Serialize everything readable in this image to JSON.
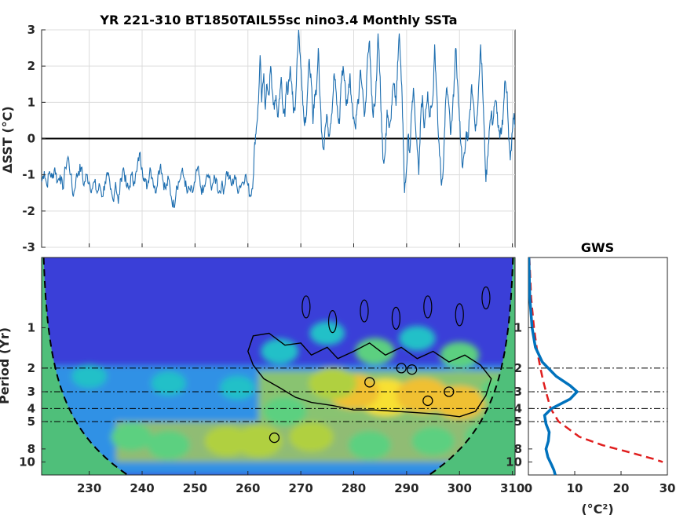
{
  "chart_data": [
    {
      "type": "line",
      "title": "YR 221-310 BT1850TAIL55sc nino3.4 Monthly SSTa",
      "xlabel": "",
      "ylabel": "ΔSST (°C)",
      "xlim": [
        221,
        310.5
      ],
      "ylim": [
        -3,
        3
      ],
      "xticks": [
        230,
        240,
        250,
        260,
        270,
        280,
        290,
        300,
        310
      ],
      "yticks": [
        -3,
        -2,
        -1,
        0,
        1,
        2,
        3
      ],
      "grid": true,
      "reference_line": 0,
      "line_color": "#1f6fb0",
      "series_anchor_points": [
        [
          221.0,
          -1.2
        ],
        [
          221.5,
          -0.9
        ],
        [
          222.0,
          -1.3
        ],
        [
          222.5,
          -0.9
        ],
        [
          223.0,
          -1.1
        ],
        [
          223.5,
          -0.8
        ],
        [
          224.0,
          -1.2
        ],
        [
          224.5,
          -1.0
        ],
        [
          225.0,
          -1.4
        ],
        [
          225.5,
          -0.8
        ],
        [
          226.0,
          -0.5
        ],
        [
          226.5,
          -1.0
        ],
        [
          227.0,
          -1.6
        ],
        [
          227.5,
          -1.1
        ],
        [
          228.0,
          -0.9
        ],
        [
          228.5,
          -0.8
        ],
        [
          229.0,
          -1.3
        ],
        [
          229.5,
          -1.0
        ],
        [
          230.0,
          -1.2
        ],
        [
          230.5,
          -1.4
        ],
        [
          231.0,
          -1.2
        ],
        [
          231.5,
          -1.5
        ],
        [
          232.0,
          -1.3
        ],
        [
          232.5,
          -1.6
        ],
        [
          233.0,
          -1.2
        ],
        [
          233.5,
          -1.0
        ],
        [
          234.0,
          -1.4
        ],
        [
          234.5,
          -1.7
        ],
        [
          235.0,
          -1.2
        ],
        [
          235.5,
          -1.8
        ],
        [
          236.0,
          -1.1
        ],
        [
          236.5,
          -0.8
        ],
        [
          237.0,
          -1.3
        ],
        [
          237.5,
          -1.4
        ],
        [
          238.0,
          -1.0
        ],
        [
          238.5,
          -1.2
        ],
        [
          239.0,
          -0.9
        ],
        [
          239.5,
          -0.4
        ],
        [
          240.0,
          -0.8
        ],
        [
          240.5,
          -1.2
        ],
        [
          241.0,
          -1.3
        ],
        [
          241.5,
          -0.8
        ],
        [
          242.0,
          -1.1
        ],
        [
          242.5,
          -1.5
        ],
        [
          243.0,
          -1.0
        ],
        [
          243.5,
          -0.7
        ],
        [
          244.0,
          -1.2
        ],
        [
          244.5,
          -1.4
        ],
        [
          245.0,
          -1.1
        ],
        [
          245.5,
          -1.6
        ],
        [
          246.0,
          -1.9
        ],
        [
          246.5,
          -1.3
        ],
        [
          247.0,
          -1.2
        ],
        [
          247.5,
          -0.9
        ],
        [
          248.0,
          -1.1
        ],
        [
          248.5,
          -1.5
        ],
        [
          249.0,
          -1.4
        ],
        [
          249.5,
          -1.5
        ],
        [
          250.0,
          -1.2
        ],
        [
          250.5,
          -0.8
        ],
        [
          251.0,
          -1.3
        ],
        [
          251.5,
          -1.5
        ],
        [
          252.0,
          -1.2
        ],
        [
          252.5,
          -1.0
        ],
        [
          253.0,
          -1.3
        ],
        [
          253.5,
          -1.2
        ],
        [
          254.0,
          -1.1
        ],
        [
          254.5,
          -1.5
        ],
        [
          255.0,
          -1.3
        ],
        [
          255.5,
          -1.4
        ],
        [
          256.0,
          -0.9
        ],
        [
          256.5,
          -1.1
        ],
        [
          257.0,
          -1.3
        ],
        [
          257.5,
          -1.0
        ],
        [
          258.0,
          -1.4
        ],
        [
          258.5,
          -1.3
        ],
        [
          259.0,
          -1.2
        ],
        [
          259.5,
          -1.0
        ],
        [
          260.0,
          -1.3
        ],
        [
          260.5,
          -1.6
        ],
        [
          261.0,
          -1.1
        ],
        [
          261.3,
          -0.1
        ],
        [
          261.6,
          0.3
        ],
        [
          262.0,
          1.0
        ],
        [
          262.3,
          2.3
        ],
        [
          262.6,
          1.0
        ],
        [
          263.0,
          1.8
        ],
        [
          263.3,
          0.8
        ],
        [
          263.6,
          1.5
        ],
        [
          264.0,
          1.2
        ],
        [
          264.3,
          2.0
        ],
        [
          264.6,
          1.3
        ],
        [
          265.0,
          0.8
        ],
        [
          265.3,
          1.2
        ],
        [
          265.6,
          0.6
        ],
        [
          266.0,
          1.1
        ],
        [
          266.3,
          1.7
        ],
        [
          266.6,
          0.9
        ],
        [
          267.0,
          0.6
        ],
        [
          267.3,
          1.5
        ],
        [
          267.6,
          1.3
        ],
        [
          268.0,
          2.0
        ],
        [
          268.3,
          1.5
        ],
        [
          268.6,
          0.7
        ],
        [
          269.0,
          1.0
        ],
        [
          269.3,
          2.2
        ],
        [
          269.6,
          3.0
        ],
        [
          270.0,
          2.0
        ],
        [
          270.3,
          1.3
        ],
        [
          270.6,
          0.5
        ],
        [
          271.0,
          0.6
        ],
        [
          271.3,
          1.4
        ],
        [
          271.6,
          2.2
        ],
        [
          272.0,
          1.5
        ],
        [
          272.3,
          0.4
        ],
        [
          272.6,
          1.2
        ],
        [
          273.0,
          1.4
        ],
        [
          273.3,
          2.5
        ],
        [
          273.6,
          1.2
        ],
        [
          274.0,
          0.1
        ],
        [
          274.3,
          -0.3
        ],
        [
          274.6,
          0.3
        ],
        [
          275.0,
          0.6
        ],
        [
          275.3,
          0.1
        ],
        [
          275.6,
          0.4
        ],
        [
          276.0,
          1.0
        ],
        [
          276.3,
          1.8
        ],
        [
          276.6,
          1.4
        ],
        [
          277.0,
          0.6
        ],
        [
          277.3,
          0.4
        ],
        [
          277.6,
          1.5
        ],
        [
          278.0,
          2.0
        ],
        [
          278.3,
          1.6
        ],
        [
          278.6,
          0.9
        ],
        [
          279.0,
          1.3
        ],
        [
          279.3,
          1.8
        ],
        [
          279.6,
          1.0
        ],
        [
          280.0,
          0.6
        ],
        [
          280.3,
          0.3
        ],
        [
          280.6,
          0.8
        ],
        [
          281.0,
          1.2
        ],
        [
          281.3,
          1.9
        ],
        [
          281.6,
          1.4
        ],
        [
          282.0,
          0.6
        ],
        [
          282.3,
          1.0
        ],
        [
          282.6,
          2.2
        ],
        [
          283.0,
          2.7
        ],
        [
          283.3,
          1.6
        ],
        [
          283.6,
          0.7
        ],
        [
          284.0,
          0.9
        ],
        [
          284.3,
          1.6
        ],
        [
          284.6,
          2.9
        ],
        [
          285.0,
          1.7
        ],
        [
          285.3,
          0.2
        ],
        [
          285.6,
          -0.6
        ],
        [
          286.0,
          -0.3
        ],
        [
          286.3,
          0.8
        ],
        [
          286.6,
          0.4
        ],
        [
          287.0,
          0.5
        ],
        [
          287.3,
          1.3
        ],
        [
          287.6,
          1.5
        ],
        [
          288.0,
          0.9
        ],
        [
          288.3,
          2.1
        ],
        [
          288.6,
          2.9
        ],
        [
          289.0,
          1.6
        ],
        [
          289.3,
          0.4
        ],
        [
          289.6,
          -1.5
        ],
        [
          290.0,
          -0.8
        ],
        [
          290.3,
          0.1
        ],
        [
          290.6,
          -0.4
        ],
        [
          291.0,
          0.8
        ],
        [
          291.3,
          1.4
        ],
        [
          291.6,
          0.5
        ],
        [
          292.0,
          -0.3
        ],
        [
          292.3,
          -1.0
        ],
        [
          292.6,
          0.4
        ],
        [
          293.0,
          1.2
        ],
        [
          293.3,
          0.3
        ],
        [
          293.6,
          0.8
        ],
        [
          294.0,
          1.3
        ],
        [
          294.3,
          0.6
        ],
        [
          294.6,
          0.9
        ],
        [
          295.0,
          1.2
        ],
        [
          295.3,
          2.6
        ],
        [
          295.6,
          1.5
        ],
        [
          296.0,
          0.1
        ],
        [
          296.3,
          -0.5
        ],
        [
          296.6,
          -1.3
        ],
        [
          297.0,
          -0.6
        ],
        [
          297.3,
          0.8
        ],
        [
          297.6,
          1.4
        ],
        [
          298.0,
          0.9
        ],
        [
          298.3,
          0.1
        ],
        [
          298.6,
          0.5
        ],
        [
          299.0,
          1.6
        ],
        [
          299.3,
          2.5
        ],
        [
          299.6,
          1.6
        ],
        [
          300.0,
          0.5
        ],
        [
          300.3,
          -0.2
        ],
        [
          300.6,
          -0.8
        ],
        [
          301.0,
          -0.4
        ],
        [
          301.3,
          0.2
        ],
        [
          301.6,
          0.0
        ],
        [
          302.0,
          0.8
        ],
        [
          302.3,
          1.5
        ],
        [
          302.6,
          1.0
        ],
        [
          303.0,
          0.2
        ],
        [
          303.3,
          0.6
        ],
        [
          303.6,
          1.4
        ],
        [
          304.0,
          2.6
        ],
        [
          304.3,
          1.7
        ],
        [
          304.6,
          0.5
        ],
        [
          305.0,
          -1.2
        ],
        [
          305.3,
          -0.5
        ],
        [
          305.6,
          0.2
        ],
        [
          306.0,
          0.7
        ],
        [
          306.3,
          0.4
        ],
        [
          306.6,
          0.9
        ],
        [
          307.0,
          1.0
        ],
        [
          307.3,
          0.3
        ],
        [
          307.6,
          0.0
        ],
        [
          308.0,
          0.3
        ],
        [
          308.3,
          0.8
        ],
        [
          308.6,
          1.6
        ],
        [
          309.0,
          1.3
        ],
        [
          309.3,
          0.0
        ],
        [
          309.6,
          -0.6
        ],
        [
          310.0,
          0.2
        ],
        [
          310.3,
          0.7
        ],
        [
          310.5,
          0.3
        ]
      ]
    },
    {
      "type": "heatmap",
      "title": "",
      "ylabel": "Period (Yr)",
      "xlim": [
        221,
        310.5
      ],
      "xticks": [
        230,
        240,
        250,
        260,
        270,
        280,
        290,
        300,
        310
      ],
      "yscale": "log",
      "ylim": [
        0.3,
        12.5
      ],
      "yticks": [
        1,
        2,
        3,
        4,
        5,
        8,
        10
      ],
      "reference_periods": [
        2,
        3,
        4,
        5
      ],
      "colormap": "parula",
      "cone_of_influence": "dashed black",
      "power_hotspots": [
        {
          "x": 286,
          "period": 3.3,
          "level": 0.95
        },
        {
          "x": 280,
          "period": 3.0,
          "level": 0.85
        },
        {
          "x": 293,
          "period": 3.2,
          "level": 0.9
        },
        {
          "x": 300,
          "period": 3.6,
          "level": 0.8
        },
        {
          "x": 276,
          "period": 2.6,
          "level": 0.75
        },
        {
          "x": 267,
          "period": 4.2,
          "level": 0.6
        },
        {
          "x": 262,
          "period": 7.0,
          "level": 0.75
        },
        {
          "x": 256,
          "period": 7.0,
          "level": 0.65
        },
        {
          "x": 245,
          "period": 7.5,
          "level": 0.6
        },
        {
          "x": 238,
          "period": 6.5,
          "level": 0.55
        },
        {
          "x": 295,
          "period": 7.0,
          "level": 0.6
        },
        {
          "x": 305,
          "period": 6.5,
          "level": 0.6
        },
        {
          "x": 272,
          "period": 6.5,
          "level": 0.65
        },
        {
          "x": 283,
          "period": 7.5,
          "level": 0.6
        },
        {
          "x": 266,
          "period": 1.5,
          "level": 0.45
        },
        {
          "x": 284,
          "period": 1.5,
          "level": 0.5
        },
        {
          "x": 300,
          "period": 1.6,
          "level": 0.5
        },
        {
          "x": 292,
          "period": 1.2,
          "level": 0.42
        },
        {
          "x": 275,
          "period": 1.1,
          "level": 0.38
        },
        {
          "x": 230,
          "period": 2.3,
          "level": 0.38
        },
        {
          "x": 245,
          "period": 2.6,
          "level": 0.38
        },
        {
          "x": 258,
          "period": 2.8,
          "level": 0.38
        },
        {
          "x": 225,
          "period": 8.0,
          "level": 0.35
        },
        {
          "x": 308,
          "period": 3.0,
          "level": 0.6
        }
      ]
    },
    {
      "type": "line",
      "title": "GWS",
      "xlabel": "(°C²)",
      "xlim": [
        0,
        30
      ],
      "xticks": [
        0,
        10,
        20,
        30
      ],
      "yscale": "log",
      "ylim": [
        0.3,
        12.5
      ],
      "yticks": [
        1,
        2,
        3,
        4,
        5,
        8,
        10
      ],
      "reference_periods": [
        2,
        3,
        4,
        5
      ],
      "series": [
        {
          "style": "solid",
          "color": "#0072bd",
          "points": [
            [
              0.1,
              0.3
            ],
            [
              0.3,
              0.6
            ],
            [
              0.8,
              1.0
            ],
            [
              1.5,
              1.4
            ],
            [
              3,
              1.8
            ],
            [
              6,
              2.3
            ],
            [
              9,
              2.7
            ],
            [
              10.5,
              3.0
            ],
            [
              9,
              3.4
            ],
            [
              5,
              4.0
            ],
            [
              3.5,
              4.5
            ],
            [
              3.8,
              5.2
            ],
            [
              4.5,
              6.0
            ],
            [
              4.3,
              7.0
            ],
            [
              3.8,
              8.0
            ],
            [
              4.2,
              9.2
            ],
            [
              5.0,
              10.5
            ],
            [
              5.5,
              11.5
            ],
            [
              5.8,
              12.5
            ]
          ]
        },
        {
          "style": "dashed",
          "color": "#e01f1f",
          "points": [
            [
              0.2,
              0.3
            ],
            [
              0.6,
              0.6
            ],
            [
              1.2,
              1.0
            ],
            [
              1.9,
              1.5
            ],
            [
              2.6,
              2.0
            ],
            [
              3.2,
              2.5
            ],
            [
              3.8,
              3.0
            ],
            [
              4.8,
              4.0
            ],
            [
              6.5,
              5.0
            ],
            [
              11,
              6.5
            ],
            [
              16,
              7.5
            ],
            [
              22,
              8.5
            ],
            [
              27,
              9.5
            ],
            [
              29,
              10.0
            ]
          ]
        }
      ]
    }
  ]
}
